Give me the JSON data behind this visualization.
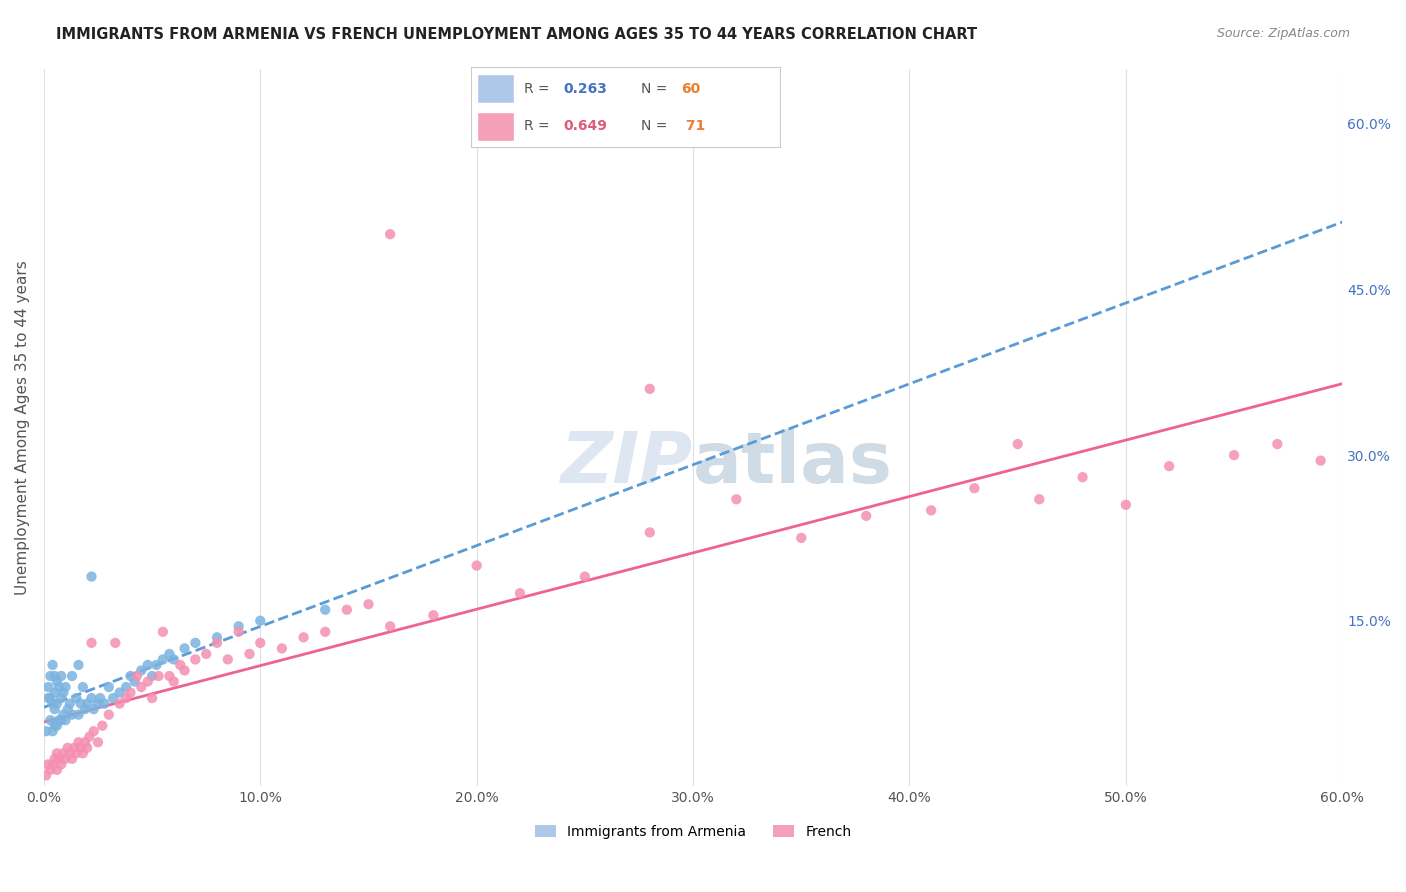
{
  "title": "IMMIGRANTS FROM ARMENIA VS FRENCH UNEMPLOYMENT AMONG AGES 35 TO 44 YEARS CORRELATION CHART",
  "source": "Source: ZipAtlas.com",
  "xlabel_bottom": "",
  "ylabel": "Unemployment Among Ages 35 to 44 years",
  "x_tick_labels": [
    "0.0%",
    "10.0%",
    "20.0%",
    "30.0%",
    "40.0%",
    "50.0%",
    "60.0%"
  ],
  "x_tick_values": [
    0.0,
    0.1,
    0.2,
    0.3,
    0.4,
    0.5,
    0.6
  ],
  "y_tick_labels_right": [
    "60.0%",
    "45.0%",
    "30.0%",
    "15.0%"
  ],
  "y_tick_values_right": [
    0.6,
    0.45,
    0.3,
    0.15
  ],
  "xlim": [
    0.0,
    0.6
  ],
  "ylim": [
    0.0,
    0.65
  ],
  "legend_r1": "R = 0.263",
  "legend_n1": "N = 60",
  "legend_r2": "R = 0.649",
  "legend_n2": "N =  71",
  "series1_color": "#7ab3e0",
  "series2_color": "#f48fb1",
  "trendline1_color": "#5b9bd5",
  "trendline2_color": "#f06292",
  "watermark_text": "ZIPatlas",
  "watermark_color": "#d0dce8",
  "background_color": "#ffffff",
  "grid_color": "#e0e0e0",
  "legend_box_color1": "#adc8e8",
  "legend_box_color2": "#f4a0b8",
  "armenia_x": [
    0.001,
    0.002,
    0.002,
    0.003,
    0.003,
    0.003,
    0.004,
    0.004,
    0.004,
    0.005,
    0.005,
    0.005,
    0.005,
    0.006,
    0.006,
    0.006,
    0.007,
    0.007,
    0.008,
    0.008,
    0.008,
    0.009,
    0.009,
    0.01,
    0.01,
    0.011,
    0.012,
    0.013,
    0.013,
    0.015,
    0.016,
    0.016,
    0.017,
    0.018,
    0.019,
    0.02,
    0.022,
    0.023,
    0.025,
    0.026,
    0.028,
    0.03,
    0.032,
    0.035,
    0.038,
    0.04,
    0.042,
    0.045,
    0.048,
    0.05,
    0.052,
    0.055,
    0.058,
    0.06,
    0.065,
    0.07,
    0.08,
    0.09,
    0.1,
    0.13
  ],
  "armenia_y": [
    0.05,
    0.08,
    0.09,
    0.06,
    0.08,
    0.1,
    0.05,
    0.075,
    0.11,
    0.055,
    0.07,
    0.085,
    0.1,
    0.055,
    0.075,
    0.095,
    0.06,
    0.09,
    0.06,
    0.08,
    0.1,
    0.065,
    0.085,
    0.06,
    0.09,
    0.07,
    0.075,
    0.065,
    0.1,
    0.08,
    0.065,
    0.11,
    0.075,
    0.09,
    0.07,
    0.075,
    0.08,
    0.07,
    0.075,
    0.08,
    0.075,
    0.09,
    0.08,
    0.085,
    0.09,
    0.1,
    0.095,
    0.105,
    0.11,
    0.1,
    0.11,
    0.115,
    0.12,
    0.115,
    0.125,
    0.13,
    0.135,
    0.145,
    0.15,
    0.16
  ],
  "armenia_high_y": [
    0.19
  ],
  "armenia_high_x": [
    0.022
  ],
  "french_x": [
    0.001,
    0.002,
    0.003,
    0.004,
    0.005,
    0.006,
    0.006,
    0.007,
    0.008,
    0.009,
    0.01,
    0.011,
    0.012,
    0.013,
    0.014,
    0.015,
    0.016,
    0.017,
    0.018,
    0.019,
    0.02,
    0.021,
    0.022,
    0.023,
    0.025,
    0.027,
    0.03,
    0.033,
    0.035,
    0.038,
    0.04,
    0.043,
    0.045,
    0.048,
    0.05,
    0.053,
    0.055,
    0.058,
    0.06,
    0.063,
    0.065,
    0.07,
    0.075,
    0.08,
    0.085,
    0.09,
    0.095,
    0.1,
    0.11,
    0.12,
    0.13,
    0.14,
    0.15,
    0.16,
    0.18,
    0.2,
    0.22,
    0.25,
    0.28,
    0.32,
    0.35,
    0.38,
    0.41,
    0.43,
    0.46,
    0.48,
    0.5,
    0.52,
    0.55,
    0.57,
    0.59
  ],
  "french_y": [
    0.01,
    0.02,
    0.015,
    0.02,
    0.025,
    0.015,
    0.03,
    0.025,
    0.02,
    0.03,
    0.025,
    0.035,
    0.03,
    0.025,
    0.035,
    0.03,
    0.04,
    0.035,
    0.03,
    0.04,
    0.035,
    0.045,
    0.13,
    0.05,
    0.04,
    0.055,
    0.065,
    0.13,
    0.075,
    0.08,
    0.085,
    0.1,
    0.09,
    0.095,
    0.08,
    0.1,
    0.14,
    0.1,
    0.095,
    0.11,
    0.105,
    0.115,
    0.12,
    0.13,
    0.115,
    0.14,
    0.12,
    0.13,
    0.125,
    0.135,
    0.14,
    0.16,
    0.165,
    0.145,
    0.155,
    0.2,
    0.175,
    0.19,
    0.23,
    0.26,
    0.225,
    0.245,
    0.25,
    0.27,
    0.26,
    0.28,
    0.255,
    0.29,
    0.3,
    0.31,
    0.295
  ],
  "french_outlier_x": [
    0.16
  ],
  "french_outlier_y": [
    0.5
  ],
  "french_outlier2_x": [
    0.28
  ],
  "french_outlier2_y": [
    0.36
  ],
  "french_outlier3_x": [
    0.45
  ],
  "french_outlier3_y": [
    0.31
  ]
}
